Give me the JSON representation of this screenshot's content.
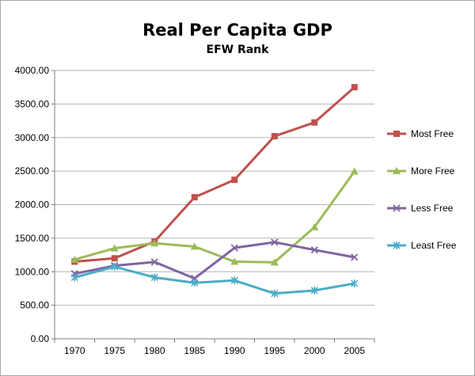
{
  "chart_data": {
    "type": "line",
    "title": "Real Per Capita GDP",
    "subtitle": "EFW Rank",
    "xlabel": "",
    "ylabel": "",
    "ylim": [
      0,
      4000
    ],
    "y_ticks": [
      "0.00",
      "500.00",
      "1000.00",
      "1500.00",
      "2000.00",
      "2500.00",
      "3000.00",
      "3500.00",
      "4000.00"
    ],
    "categories": [
      "1970",
      "1975",
      "1980",
      "1985",
      "1990",
      "1995",
      "2000",
      "2005"
    ],
    "grid": "horizontal major gridlines",
    "legend_position": "right",
    "series": [
      {
        "name": "Most Free",
        "color": "#c0504d",
        "marker": "square",
        "values": [
          1150,
          1200,
          1450,
          2110,
          2370,
          3020,
          3225,
          3750
        ]
      },
      {
        "name": "More Free",
        "color": "#9bbb59",
        "marker": "triangle",
        "values": [
          1180,
          1350,
          1425,
          1375,
          1150,
          1140,
          1665,
          2495
        ]
      },
      {
        "name": "Less Free",
        "color": "#8064a2",
        "marker": "x",
        "values": [
          970,
          1090,
          1145,
          900,
          1355,
          1440,
          1325,
          1215
        ]
      },
      {
        "name": "Least Free",
        "color": "#4bacc6",
        "marker": "star",
        "values": [
          915,
          1075,
          915,
          835,
          870,
          675,
          720,
          825
        ]
      }
    ]
  }
}
